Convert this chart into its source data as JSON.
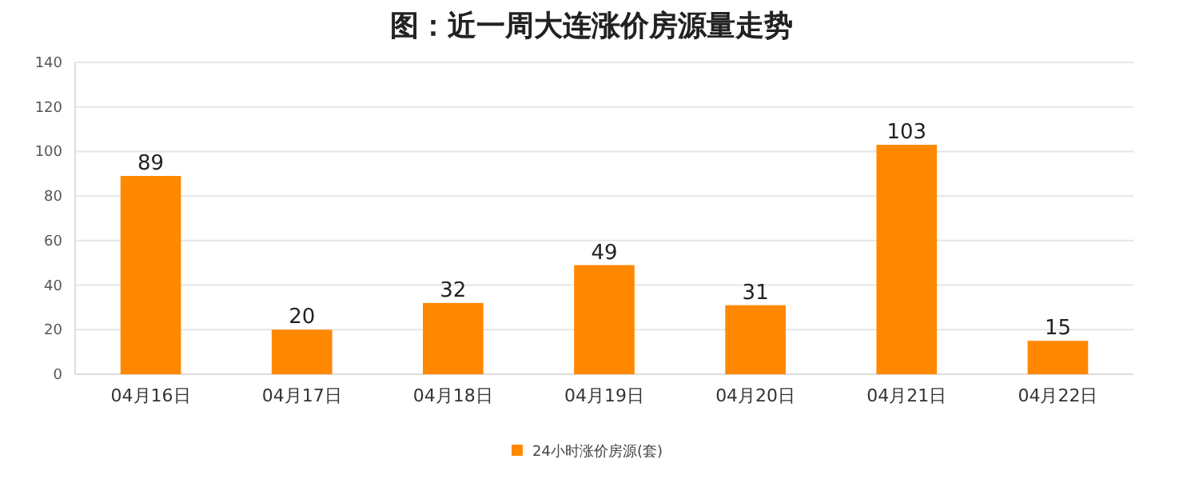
{
  "chart_data": {
    "type": "bar",
    "title": "图：近一周大连涨价房源量走势",
    "categories": [
      "04月16日",
      "04月17日",
      "04月18日",
      "04月19日",
      "04月20日",
      "04月21日",
      "04月22日"
    ],
    "series": [
      {
        "name": "24小时涨价房源(套)",
        "color": "#ff8800",
        "values": [
          89,
          20,
          32,
          49,
          31,
          103,
          15
        ]
      }
    ],
    "ylim": [
      0,
      140
    ],
    "yticks": [
      0,
      20,
      40,
      60,
      80,
      100,
      120,
      140
    ],
    "grid": "y",
    "legend": "bottom",
    "data_labels": true
  }
}
